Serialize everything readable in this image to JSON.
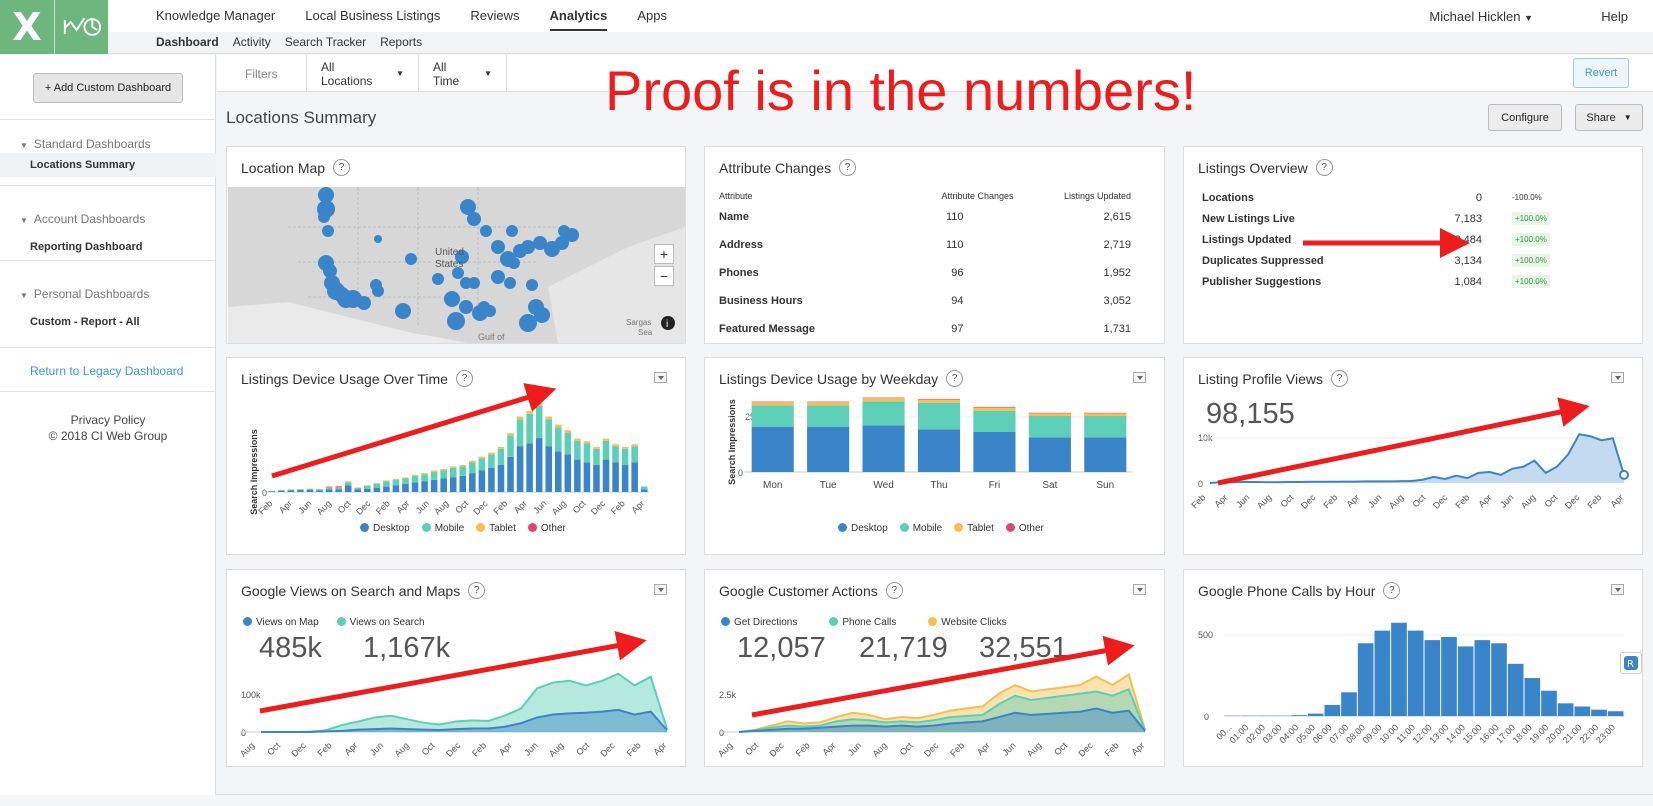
{
  "app": {
    "logo_letter": "X",
    "brand_color": "#6db67d"
  },
  "nav": {
    "items": [
      "Knowledge Manager",
      "Local Business Listings",
      "Reviews",
      "Analytics",
      "Apps"
    ],
    "active": "Analytics",
    "user": "Michael Hicklen",
    "help": "Help"
  },
  "subnav": {
    "items": [
      "Dashboard",
      "Activity",
      "Search Tracker",
      "Reports"
    ],
    "active": "Dashboard"
  },
  "sidebar": {
    "add_button": "+ Add Custom Dashboard",
    "groups": [
      {
        "label": "Standard Dashboards",
        "items": [
          "Locations Summary"
        ]
      },
      {
        "label": "Account Dashboards",
        "items": [
          "Reporting Dashboard"
        ]
      },
      {
        "label": "Personal Dashboards",
        "items": [
          "Custom - Report - All"
        ]
      }
    ],
    "legacy_link": "Return to Legacy Dashboard",
    "privacy": "Privacy Policy",
    "copyright": "© 2018 CI Web Group"
  },
  "filters": {
    "label": "Filters",
    "locations": "All Locations",
    "time": "All Time",
    "revert": "Revert"
  },
  "banner": "Proof is in the numbers!",
  "page": {
    "title": "Locations Summary",
    "configure": "Configure",
    "share": "Share"
  },
  "cards": {
    "map": {
      "title": "Location Map",
      "country_label": "United States",
      "gulf": "Gulf of",
      "sea": "Sargas Sea",
      "zoom_in": "+",
      "zoom_out": "−"
    },
    "attr": {
      "title": "Attribute Changes",
      "headers": [
        "Attribute",
        "Attribute Changes",
        "Listings Updated"
      ],
      "rows": [
        [
          "Name",
          "110",
          "2,615"
        ],
        [
          "Address",
          "110",
          "2,719"
        ],
        [
          "Phones",
          "96",
          "1,952"
        ],
        [
          "Business Hours",
          "94",
          "3,052"
        ],
        [
          "Featured Message",
          "97",
          "1,731"
        ]
      ]
    },
    "overview": {
      "title": "Listings Overview",
      "rows": [
        [
          "Locations",
          "0",
          "-100.0%"
        ],
        [
          "New Listings Live",
          "7,183",
          "+100.0%"
        ],
        [
          "Listings Updated",
          "122,484",
          "+100.0%"
        ],
        [
          "Duplicates Suppressed",
          "3,134",
          "+100.0%"
        ],
        [
          "Publisher Suggestions",
          "1,084",
          "+100.0%"
        ]
      ]
    },
    "device_time": {
      "title": "Listings Device Usage Over Time"
    },
    "device_week": {
      "title": "Listings Device Usage by Weekday"
    },
    "profile": {
      "title": "Listing Profile Views",
      "value": "98,155"
    },
    "gviews": {
      "title": "Google Views on Search and Maps",
      "legend": [
        "Views on Map",
        "Views on Search"
      ],
      "values": [
        "485k",
        "1,167k"
      ]
    },
    "gactions": {
      "title": "Google Customer Actions",
      "legend": [
        "Get Directions",
        "Phone Calls",
        "Website Clicks"
      ],
      "values": [
        "12,057",
        "21,719",
        "32,551"
      ]
    },
    "gcalls": {
      "title": "Google Phone Calls by Hour"
    }
  },
  "colors": {
    "desktop": "#3a85c9",
    "mobile": "#5dcfb6",
    "tablet": "#f6bf4f",
    "other": "#e2466b",
    "accent_red": "#ee1c1c"
  },
  "chart_data": [
    {
      "type": "bar",
      "title": "Listings Device Usage Over Time",
      "ylabel": "Search Impressions",
      "y_ticks": [
        "0"
      ],
      "x_ticks": [
        "Feb",
        "Apr",
        "Jun",
        "Aug",
        "Oct",
        "Dec",
        "Feb",
        "Apr",
        "Jun",
        "Aug",
        "Oct",
        "Dec",
        "Feb",
        "Apr",
        "Jun",
        "Aug",
        "Oct",
        "Dec",
        "Feb",
        "Apr"
      ],
      "legend": [
        "Desktop",
        "Mobile",
        "Tablet",
        "Other"
      ],
      "series": [
        {
          "name": "Desktop",
          "values": [
            0.3,
            0.5,
            0.6,
            0.7,
            0.8,
            0.6,
            1,
            1,
            2.5,
            1,
            1.2,
            1.5,
            2,
            2.5,
            3,
            3.5,
            4,
            4.5,
            5,
            5.5,
            6,
            7,
            8,
            9,
            10,
            13,
            17,
            18,
            20,
            17,
            15,
            14,
            12,
            11,
            10,
            12,
            11,
            10,
            11,
            1
          ]
        },
        {
          "name": "Mobile",
          "values": [
            0.1,
            0.2,
            0.3,
            0.3,
            0.4,
            0.4,
            0.5,
            0.5,
            1,
            0.5,
            1,
            1.5,
            2,
            2,
            2,
            2.5,
            2.5,
            3,
            3,
            3.5,
            3.5,
            4,
            4.5,
            5,
            6,
            8,
            10,
            11,
            12,
            10,
            9,
            8,
            7,
            7,
            6,
            7,
            6,
            6,
            6,
            1
          ]
        },
        {
          "name": "Tablet",
          "values": [
            0.1,
            0.1,
            0.1,
            0.1,
            0.1,
            0.1,
            0.2,
            0.2,
            0.3,
            0.2,
            0.3,
            0.3,
            0.3,
            0.4,
            0.4,
            0.4,
            0.5,
            0.5,
            0.5,
            0.5,
            0.5,
            0.6,
            0.6,
            0.6,
            0.7,
            0.8,
            1,
            1,
            1,
            1,
            1,
            0.9,
            0.8,
            0.8,
            0.7,
            0.8,
            0.7,
            0.7,
            0.7,
            0.1
          ]
        },
        {
          "name": "Other",
          "values": [
            0,
            0,
            0,
            0,
            0,
            0,
            0.3,
            0.4,
            0.1,
            0,
            0,
            0,
            0,
            0,
            0,
            0,
            0,
            0,
            0,
            0,
            0,
            0,
            0,
            0,
            0,
            0,
            0,
            0,
            0,
            0,
            0,
            0,
            0,
            0,
            0,
            0,
            0,
            0,
            0,
            0
          ]
        }
      ]
    },
    {
      "type": "bar",
      "title": "Listings Device Usage by Weekday",
      "ylabel": "Search Impressions",
      "y_ticks": [
        "0",
        "25k"
      ],
      "categories": [
        "Mon",
        "Tue",
        "Wed",
        "Thu",
        "Fri",
        "Sat",
        "Sun"
      ],
      "legend": [
        "Desktop",
        "Mobile",
        "Tablet",
        "Other"
      ],
      "series": [
        {
          "name": "Desktop",
          "values": [
            17,
            17,
            17.5,
            16,
            15,
            13,
            13
          ]
        },
        {
          "name": "Mobile",
          "values": [
            8,
            8,
            9,
            10,
            8,
            8,
            8
          ]
        },
        {
          "name": "Tablet",
          "values": [
            1.2,
            1.2,
            1.2,
            1.2,
            1.2,
            1,
            1
          ]
        },
        {
          "name": "Other",
          "values": [
            0.2,
            0.2,
            0.2,
            0.2,
            0.2,
            0.2,
            0.2
          ]
        }
      ]
    },
    {
      "type": "area",
      "title": "Listing Profile Views",
      "y_ticks": [
        "0",
        "10k"
      ],
      "ylim": [
        0,
        16000
      ],
      "x_ticks": [
        "Feb",
        "Apr",
        "Jun",
        "Aug",
        "Oct",
        "Dec",
        "Feb",
        "Apr",
        "Jun",
        "Aug",
        "Oct",
        "Dec",
        "Feb",
        "Apr",
        "Jun",
        "Aug",
        "Oct",
        "Dec",
        "Feb",
        "Apr"
      ],
      "values": [
        0,
        200,
        200,
        250,
        250,
        200,
        200,
        250,
        250,
        300,
        300,
        300,
        350,
        350,
        400,
        400,
        400,
        450,
        500,
        800,
        1500,
        1000,
        1800,
        1200,
        2500,
        2700,
        2000,
        3500,
        4000,
        5500,
        2500,
        4000,
        7000,
        12000,
        11500,
        10500,
        11000,
        2000
      ]
    },
    {
      "type": "area",
      "title": "Google Views on Search and Maps",
      "y_ticks": [
        "0",
        "100k"
      ],
      "ylim": [
        0,
        110000
      ],
      "x_ticks": [
        "Aug",
        "Oct",
        "Dec",
        "Feb",
        "Apr",
        "Jun",
        "Aug",
        "Oct",
        "Dec",
        "Feb",
        "Apr",
        "Jun",
        "Aug",
        "Oct",
        "Dec",
        "Feb",
        "Apr"
      ],
      "series": [
        {
          "name": "Views on Search",
          "values": [
            0,
            0,
            0,
            500,
            3000,
            12000,
            18000,
            25000,
            28000,
            22000,
            16000,
            13000,
            18000,
            20000,
            19000,
            28000,
            40000,
            75000,
            85000,
            88000,
            80000,
            88000,
            100000,
            80000,
            95000,
            5000
          ]
        },
        {
          "name": "Views on Map",
          "values": [
            0,
            0,
            0,
            0,
            1000,
            2000,
            4000,
            5000,
            6000,
            5000,
            4000,
            3500,
            5000,
            6000,
            6000,
            9000,
            15000,
            25000,
            30000,
            32000,
            33000,
            35000,
            38000,
            30000,
            35000,
            3000
          ]
        }
      ]
    },
    {
      "type": "area",
      "title": "Google Customer Actions",
      "y_ticks": [
        "0",
        "2.5k"
      ],
      "ylim": [
        0,
        3000
      ],
      "x_ticks": [
        "Aug",
        "Oct",
        "Dec",
        "Feb",
        "Apr",
        "Jun",
        "Aug",
        "Oct",
        "Dec",
        "Feb",
        "Apr",
        "Jun",
        "Aug",
        "Oct",
        "Dec",
        "Feb",
        "Apr"
      ],
      "series": [
        {
          "name": "Website Clicks",
          "values": [
            0,
            100,
            300,
            500,
            400,
            450,
            700,
            900,
            800,
            600,
            700,
            650,
            800,
            1000,
            1100,
            1200,
            1800,
            2200,
            1900,
            2000,
            2100,
            2200,
            2600,
            2200,
            2700,
            100
          ]
        },
        {
          "name": "Phone Calls",
          "values": [
            0,
            80,
            200,
            300,
            250,
            300,
            500,
            600,
            550,
            450,
            500,
            450,
            550,
            700,
            750,
            800,
            1300,
            1700,
            1500,
            1600,
            1700,
            1800,
            1900,
            1700,
            2000,
            80
          ]
        },
        {
          "name": "Get Directions",
          "values": [
            0,
            50,
            100,
            150,
            150,
            200,
            250,
            300,
            300,
            250,
            300,
            250,
            300,
            400,
            450,
            500,
            700,
            900,
            800,
            850,
            900,
            950,
            1100,
            900,
            1000,
            50
          ]
        }
      ]
    },
    {
      "type": "bar",
      "title": "Google Phone Calls by Hour",
      "y_ticks": [
        "0",
        "500"
      ],
      "ylim": [
        0,
        620
      ],
      "categories": [
        "00...",
        "01:00",
        "02:00",
        "03:00",
        "04:00",
        "05:00",
        "06:00",
        "07:00",
        "08:00",
        "09:00",
        "10:00",
        "11:00",
        "12:00",
        "13:00",
        "14:00",
        "15:00",
        "16:00",
        "17:00",
        "18:00",
        "19:00",
        "20:00",
        "21:00",
        "22:00",
        "23:00"
      ],
      "values": [
        2,
        2,
        2,
        2,
        5,
        15,
        70,
        150,
        460,
        540,
        590,
        540,
        480,
        500,
        440,
        480,
        460,
        330,
        240,
        160,
        80,
        60,
        40,
        30
      ]
    }
  ]
}
